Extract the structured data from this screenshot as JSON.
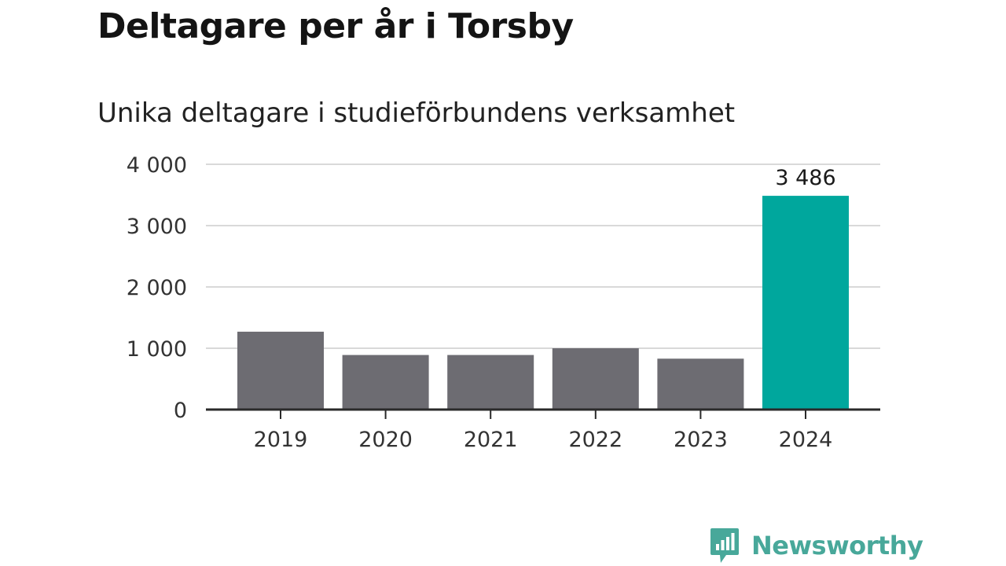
{
  "title": "Deltagare per år i Torsby",
  "subtitle": "Unika deltagare i studieförbundens verksamhet",
  "brand": {
    "name": "Newsworthy",
    "icon": "newsworthy-logo-icon",
    "color": "#48a89a"
  },
  "colors": {
    "default_bar": "#6d6c72",
    "highlight_bar": "#00a79d",
    "grid": "#d9d9d9",
    "axis": "#2a2a2a",
    "text": "#333333"
  },
  "chart_data": {
    "type": "bar",
    "title": "Deltagare per år i Torsby",
    "subtitle": "Unika deltagare i studieförbundens verksamhet",
    "xlabel": "",
    "ylabel": "",
    "categories": [
      "2019",
      "2020",
      "2021",
      "2022",
      "2023",
      "2024"
    ],
    "values": [
      1270,
      890,
      890,
      1000,
      830,
      3486
    ],
    "highlight": [
      "2024"
    ],
    "ylim": [
      0,
      4000
    ],
    "yticks": [
      0,
      1000,
      2000,
      3000,
      4000
    ],
    "ytick_labels": [
      "0",
      "1 000",
      "2 000",
      "3 000",
      "4 000"
    ],
    "data_labels": [
      {
        "category": "2024",
        "text": "3 486"
      }
    ],
    "grid": true,
    "legend": "none"
  }
}
